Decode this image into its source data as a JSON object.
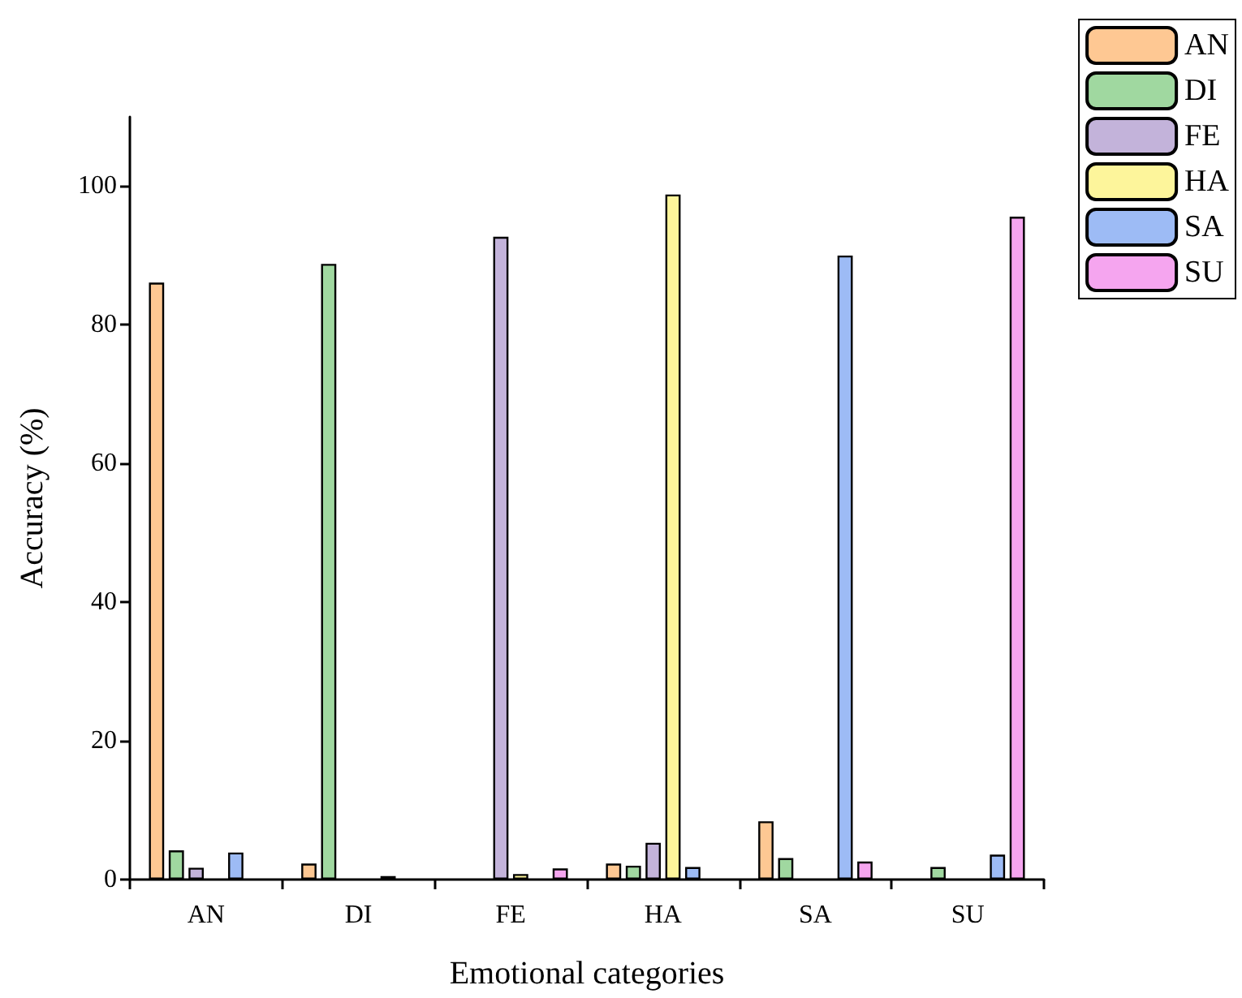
{
  "chart_data": {
    "type": "bar",
    "xlabel": "Emotional categories",
    "ylabel": "Accuracy (%)",
    "categories": [
      "AN",
      "DI",
      "FE",
      "HA",
      "SA",
      "SU"
    ],
    "series": [
      {
        "name": "AN",
        "color": "#fec893",
        "values": [
          86.1,
          2.3,
          0,
          2.3,
          8.4,
          0
        ]
      },
      {
        "name": "DI",
        "color": "#a0d8a0",
        "values": [
          4.2,
          88.8,
          0,
          2.0,
          3.1,
          1.8
        ]
      },
      {
        "name": "FE",
        "color": "#c3b3da",
        "values": [
          1.7,
          null,
          92.7,
          5.3,
          0,
          0
        ]
      },
      {
        "name": "HA",
        "color": "#fdf59b",
        "values": [
          0,
          null,
          0.8,
          98.8,
          0,
          0
        ]
      },
      {
        "name": "SA",
        "color": "#9dbbf5",
        "values": [
          3.9,
          0.5,
          0,
          1.8,
          90.0,
          3.6
        ]
      },
      {
        "name": "SU",
        "color": "#f5a5ef",
        "values": [
          0,
          null,
          1.6,
          0,
          2.6,
          95.6
        ]
      }
    ],
    "ylim": [
      0,
      110
    ],
    "yticks": [
      0,
      20,
      40,
      60,
      80,
      100
    ],
    "grid": false,
    "legend": "top right"
  }
}
